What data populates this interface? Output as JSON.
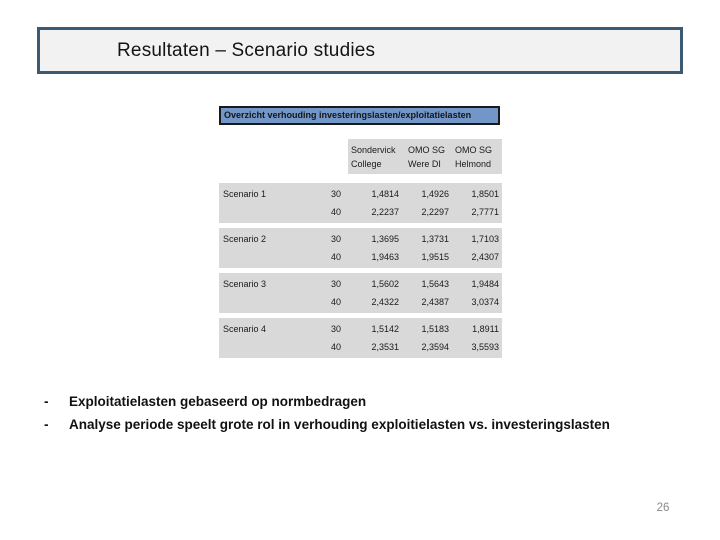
{
  "slide": {
    "title": "Resultaten – Scenario studies",
    "page_number": "26"
  },
  "table": {
    "title": "Overzicht verhouding investeringslasten/exploitatielasten",
    "columns": [
      {
        "line1": "Sondervick",
        "line2": "College"
      },
      {
        "line1": "OMO SG",
        "line2": "Were DI"
      },
      {
        "line1": "OMO SG",
        "line2": "Helmond"
      }
    ],
    "scenarios": [
      {
        "label": "Scenario 1",
        "rows": [
          {
            "period": "30",
            "values": [
              "1,4814",
              "1,4926",
              "1,8501"
            ]
          },
          {
            "period": "40",
            "values": [
              "2,2237",
              "2,2297",
              "2,7771"
            ]
          }
        ]
      },
      {
        "label": "Scenario 2",
        "rows": [
          {
            "period": "30",
            "values": [
              "1,3695",
              "1,3731",
              "1,7103"
            ]
          },
          {
            "period": "40",
            "values": [
              "1,9463",
              "1,9515",
              "2,4307"
            ]
          }
        ]
      },
      {
        "label": "Scenario 3",
        "rows": [
          {
            "period": "30",
            "values": [
              "1,5602",
              "1,5643",
              "1,9484"
            ]
          },
          {
            "period": "40",
            "values": [
              "2,4322",
              "2,4387",
              "3,0374"
            ]
          }
        ]
      },
      {
        "label": "Scenario 4",
        "rows": [
          {
            "period": "30",
            "values": [
              "1,5142",
              "1,5183",
              "1,8911"
            ]
          },
          {
            "period": "40",
            "values": [
              "2,3531",
              "2,3594",
              "3,5593"
            ]
          }
        ]
      }
    ]
  },
  "bullets": [
    {
      "marker": "-",
      "text": "Exploitatielasten gebaseerd op normbedragen"
    },
    {
      "marker": "-",
      "text": "Analyse periode speelt grote rol in verhouding exploitielasten vs. investeringslasten"
    }
  ],
  "colors": {
    "title_border": "#3d5a73",
    "title_fill": "#f2f2f2",
    "table_title_fill": "#7396c8",
    "row_fill": "#d9d9d9",
    "page_number": "#8a8a8a"
  }
}
